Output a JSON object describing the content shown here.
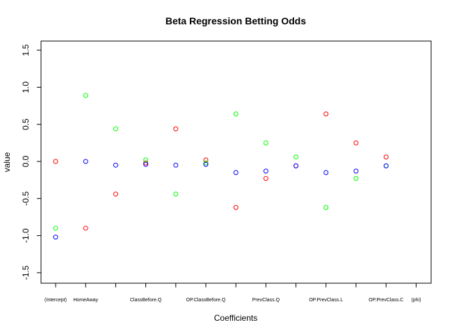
{
  "chart_data": {
    "type": "scatter",
    "title": "Beta Regression Betting Odds",
    "xlabel": "Coefficients",
    "ylabel": "value",
    "categories": [
      "(Intercept)",
      "HomeAway",
      "",
      "ClassBefore.Q",
      "",
      "OP.ClassBefore.Q",
      "",
      "PrevClass.Q",
      "",
      "OP.PrevClass.L",
      "",
      "OP.PrevClass.C",
      "(phi)"
    ],
    "ylim": [
      -1.5,
      1.5
    ],
    "yticks": [
      "-1.5",
      "-1.0",
      "-0.5",
      "0.0",
      "0.5",
      "1.0",
      "1.5"
    ],
    "grid": false,
    "legend": "none",
    "series": [
      {
        "color": "#ff0000",
        "values": [
          0.0,
          -0.9,
          -0.44,
          -0.02,
          0.44,
          0.02,
          -0.62,
          -0.23,
          -0.06,
          0.64,
          0.25,
          0.06,
          null
        ]
      },
      {
        "color": "#00ff00",
        "values": [
          -0.9,
          0.89,
          0.44,
          0.02,
          -0.44,
          -0.02,
          0.64,
          0.25,
          0.06,
          -0.62,
          -0.23,
          -0.06,
          null
        ]
      },
      {
        "color": "#0000ff",
        "values": [
          -1.02,
          0.0,
          -0.05,
          -0.04,
          -0.05,
          -0.04,
          -0.15,
          -0.13,
          -0.06,
          -0.15,
          -0.13,
          -0.06,
          null
        ]
      }
    ]
  }
}
